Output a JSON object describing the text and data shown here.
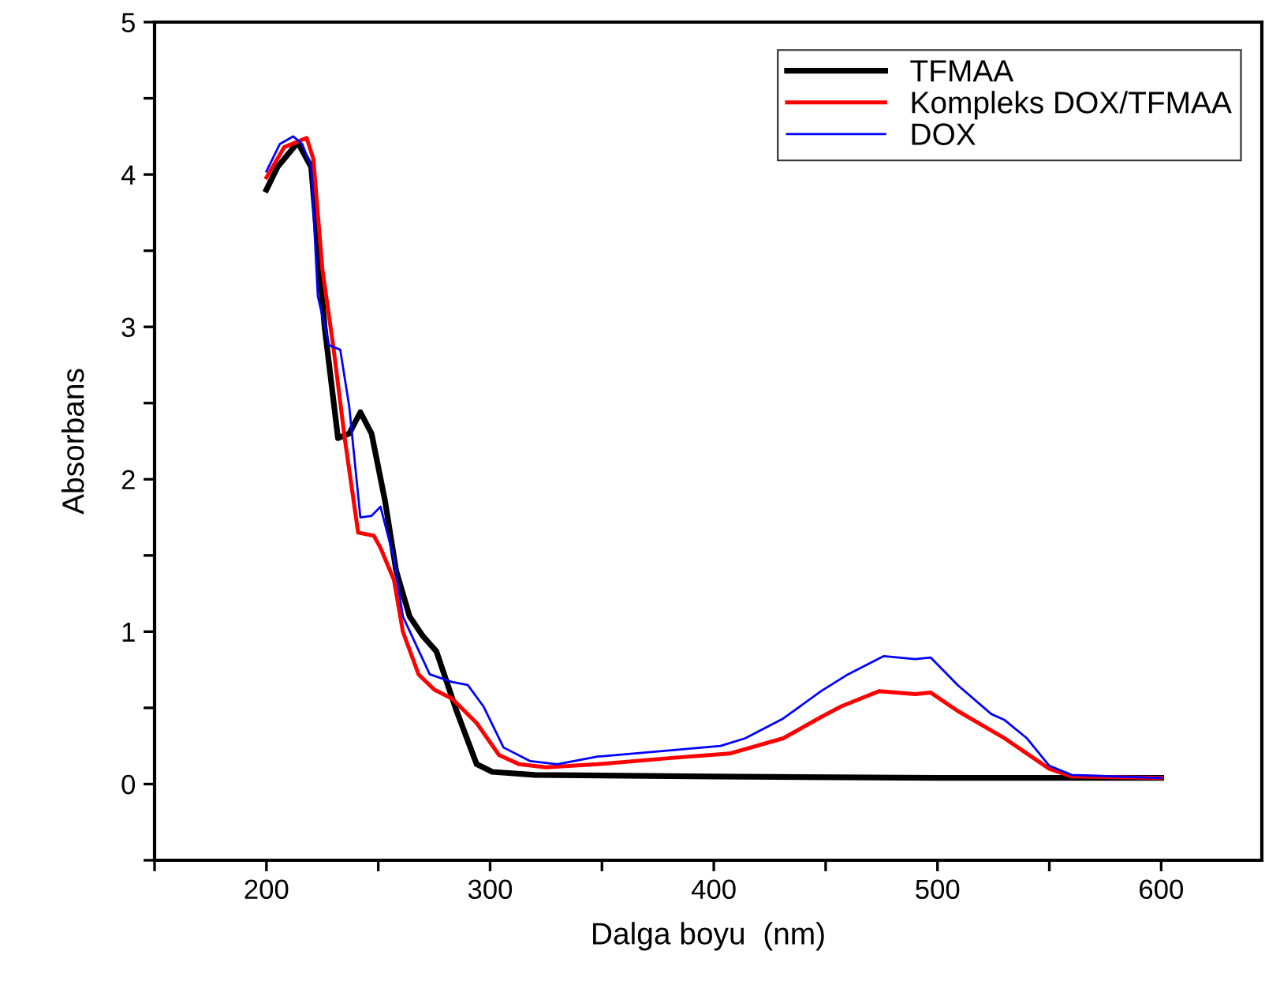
{
  "chart_data": {
    "type": "line",
    "xlabel": "Dalga boyu  (nm)",
    "ylabel": "Absorbans",
    "xlim": [
      150,
      645
    ],
    "ylim": [
      -0.5,
      5
    ],
    "xticks": [
      {
        "value": 150,
        "label": null
      },
      200,
      {
        "value": 250,
        "label": null
      },
      300,
      {
        "value": 350,
        "label": null
      },
      400,
      {
        "value": 450,
        "label": null
      },
      500,
      {
        "value": 550,
        "label": null
      },
      600
    ],
    "yticks": [
      {
        "value": -0.5,
        "label": null
      },
      0,
      {
        "value": 0.5,
        "label": null
      },
      1,
      {
        "value": 1.5,
        "label": null
      },
      2,
      {
        "value": 2.5,
        "label": null
      },
      3,
      {
        "value": 3.5,
        "label": null
      },
      4,
      {
        "value": 4.5,
        "label": null
      },
      5
    ],
    "grid": false,
    "legend": "top right",
    "marker": "none",
    "line_style": "solid",
    "series": [
      {
        "name": "TFMAA",
        "color": "#000000",
        "x": [
          200,
          205,
          214,
          220,
          226,
          232,
          237,
          242,
          247,
          253,
          258,
          264,
          270,
          276,
          285,
          294,
          301,
          320,
          400,
          500,
          600
        ],
        "values": [
          3.9,
          4.05,
          4.21,
          4.05,
          3.0,
          2.27,
          2.3,
          2.44,
          2.3,
          1.86,
          1.4,
          1.1,
          0.97,
          0.87,
          0.48,
          0.13,
          0.08,
          0.06,
          0.05,
          0.04,
          0.04
        ]
      },
      {
        "name": "Kompleks DOX/TFMAA",
        "color": "#ff0000",
        "x": [
          200,
          208,
          218,
          221,
          225,
          230,
          235,
          241,
          248,
          251,
          257,
          261,
          268,
          275,
          283,
          294,
          304,
          313,
          325,
          348,
          380,
          407,
          431,
          448,
          457,
          474,
          490,
          497,
          509,
          523,
          530,
          540,
          550,
          560,
          600
        ],
        "values": [
          3.98,
          4.18,
          4.24,
          4.1,
          3.38,
          2.86,
          2.27,
          1.65,
          1.63,
          1.55,
          1.34,
          1.0,
          0.72,
          0.62,
          0.56,
          0.4,
          0.19,
          0.13,
          0.11,
          0.13,
          0.17,
          0.2,
          0.3,
          0.44,
          0.51,
          0.61,
          0.59,
          0.6,
          0.48,
          0.36,
          0.3,
          0.2,
          0.1,
          0.05,
          0.04
        ]
      },
      {
        "name": "DOX",
        "color": "#0000ff",
        "x": [
          200,
          206,
          212,
          216,
          220,
          223,
          228,
          233,
          237,
          242,
          247,
          251,
          257,
          261,
          273,
          283,
          290,
          297,
          306,
          318,
          330,
          348,
          380,
          403,
          414,
          431,
          448,
          460,
          476,
          490,
          497,
          509,
          524,
          530,
          540,
          550,
          560,
          600
        ],
        "values": [
          4.02,
          4.2,
          4.25,
          4.2,
          4.05,
          3.2,
          2.88,
          2.85,
          2.48,
          1.75,
          1.76,
          1.82,
          1.48,
          1.1,
          0.72,
          0.67,
          0.65,
          0.51,
          0.24,
          0.15,
          0.13,
          0.18,
          0.22,
          0.25,
          0.3,
          0.43,
          0.61,
          0.72,
          0.84,
          0.82,
          0.83,
          0.65,
          0.46,
          0.42,
          0.3,
          0.12,
          0.06,
          0.04
        ]
      }
    ]
  }
}
